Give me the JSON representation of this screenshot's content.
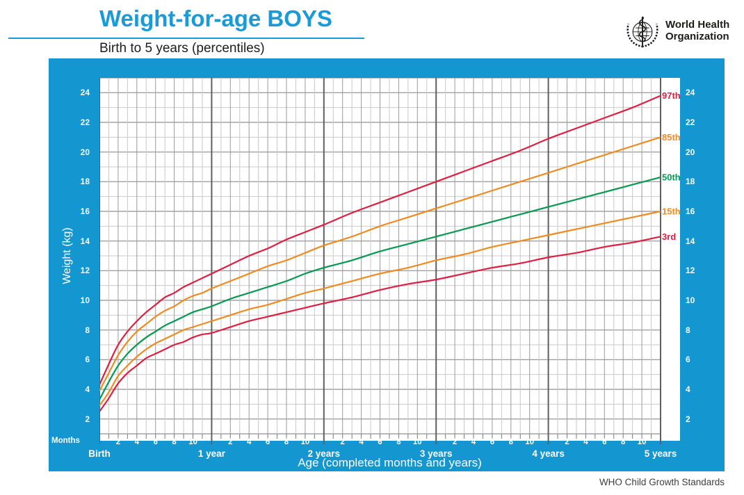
{
  "header": {
    "title": "Weight-for-age BOYS",
    "subtitle": "Birth to 5 years (percentiles)",
    "logo_line1": "World Health",
    "logo_line2": "Organization"
  },
  "footer": {
    "credit": "WHO Child Growth Standards"
  },
  "colors": {
    "accent_blue": "#1A9AD7",
    "panel_blue": "#1496D0",
    "percentile_red": "#E01E41",
    "percentile_orange": "#F18A1F",
    "percentile_green": "#069950",
    "grid_minor": "#C9C9C9",
    "grid_mid": "#9B9B9B",
    "grid_year": "#5F5F5F",
    "text_dark": "#1D1D1B"
  },
  "chart_data": {
    "type": "line",
    "title": "Weight-for-age BOYS — Birth to 5 years (percentiles)",
    "xlabel": "Age (completed months and years)",
    "ylabel": "Weight (kg)",
    "x_unit_label": "Months",
    "xlim_months": [
      0,
      60
    ],
    "ylim_kg": [
      1,
      25
    ],
    "grid": true,
    "legend_position": "curve-end-right",
    "y_ticks": [
      2,
      4,
      6,
      8,
      10,
      12,
      14,
      16,
      18,
      20,
      22,
      24
    ],
    "x_month_ticks": [
      2,
      4,
      6,
      8,
      10
    ],
    "x_year_labels": [
      "Birth",
      "1 year",
      "2 years",
      "3 years",
      "4 years",
      "5 years"
    ],
    "x_months": [
      0,
      1,
      2,
      3,
      4,
      5,
      6,
      7,
      8,
      9,
      10,
      11,
      12,
      14,
      16,
      18,
      20,
      22,
      24,
      27,
      30,
      33,
      36,
      39,
      42,
      45,
      48,
      51,
      54,
      57,
      60
    ],
    "series": [
      {
        "name": "97th",
        "color": "#E01E41",
        "values": [
          4.3,
          5.7,
          7.0,
          7.9,
          8.6,
          9.2,
          9.7,
          10.2,
          10.5,
          10.9,
          11.2,
          11.5,
          11.8,
          12.4,
          13.0,
          13.5,
          14.1,
          14.6,
          15.1,
          15.9,
          16.6,
          17.3,
          18.0,
          18.7,
          19.4,
          20.1,
          20.9,
          21.6,
          22.3,
          23.0,
          23.8
        ]
      },
      {
        "name": "85th",
        "color": "#F18A1F",
        "values": [
          3.9,
          5.1,
          6.3,
          7.2,
          7.9,
          8.4,
          8.9,
          9.3,
          9.6,
          10.0,
          10.3,
          10.5,
          10.8,
          11.3,
          11.8,
          12.3,
          12.7,
          13.2,
          13.7,
          14.3,
          15.0,
          15.6,
          16.2,
          16.8,
          17.4,
          18.0,
          18.6,
          19.2,
          19.8,
          20.4,
          21.0
        ]
      },
      {
        "name": "50th",
        "color": "#069950",
        "values": [
          3.3,
          4.5,
          5.6,
          6.4,
          7.0,
          7.5,
          7.9,
          8.3,
          8.6,
          8.9,
          9.2,
          9.4,
          9.6,
          10.1,
          10.5,
          10.9,
          11.3,
          11.8,
          12.2,
          12.7,
          13.3,
          13.8,
          14.3,
          14.8,
          15.3,
          15.8,
          16.3,
          16.8,
          17.3,
          17.8,
          18.3
        ]
      },
      {
        "name": "15th",
        "color": "#F18A1F",
        "values": [
          2.9,
          3.8,
          4.9,
          5.6,
          6.2,
          6.7,
          7.1,
          7.4,
          7.7,
          8.0,
          8.2,
          8.4,
          8.6,
          9.0,
          9.4,
          9.7,
          10.1,
          10.5,
          10.8,
          11.3,
          11.8,
          12.2,
          12.7,
          13.1,
          13.6,
          14.0,
          14.4,
          14.8,
          15.2,
          15.6,
          16.0
        ]
      },
      {
        "name": "3rd",
        "color": "#E01E41",
        "values": [
          2.5,
          3.4,
          4.4,
          5.1,
          5.6,
          6.1,
          6.4,
          6.7,
          7.0,
          7.2,
          7.5,
          7.7,
          7.8,
          8.2,
          8.6,
          8.9,
          9.2,
          9.5,
          9.8,
          10.2,
          10.7,
          11.1,
          11.4,
          11.8,
          12.2,
          12.5,
          12.9,
          13.2,
          13.6,
          13.9,
          14.3
        ]
      }
    ]
  }
}
